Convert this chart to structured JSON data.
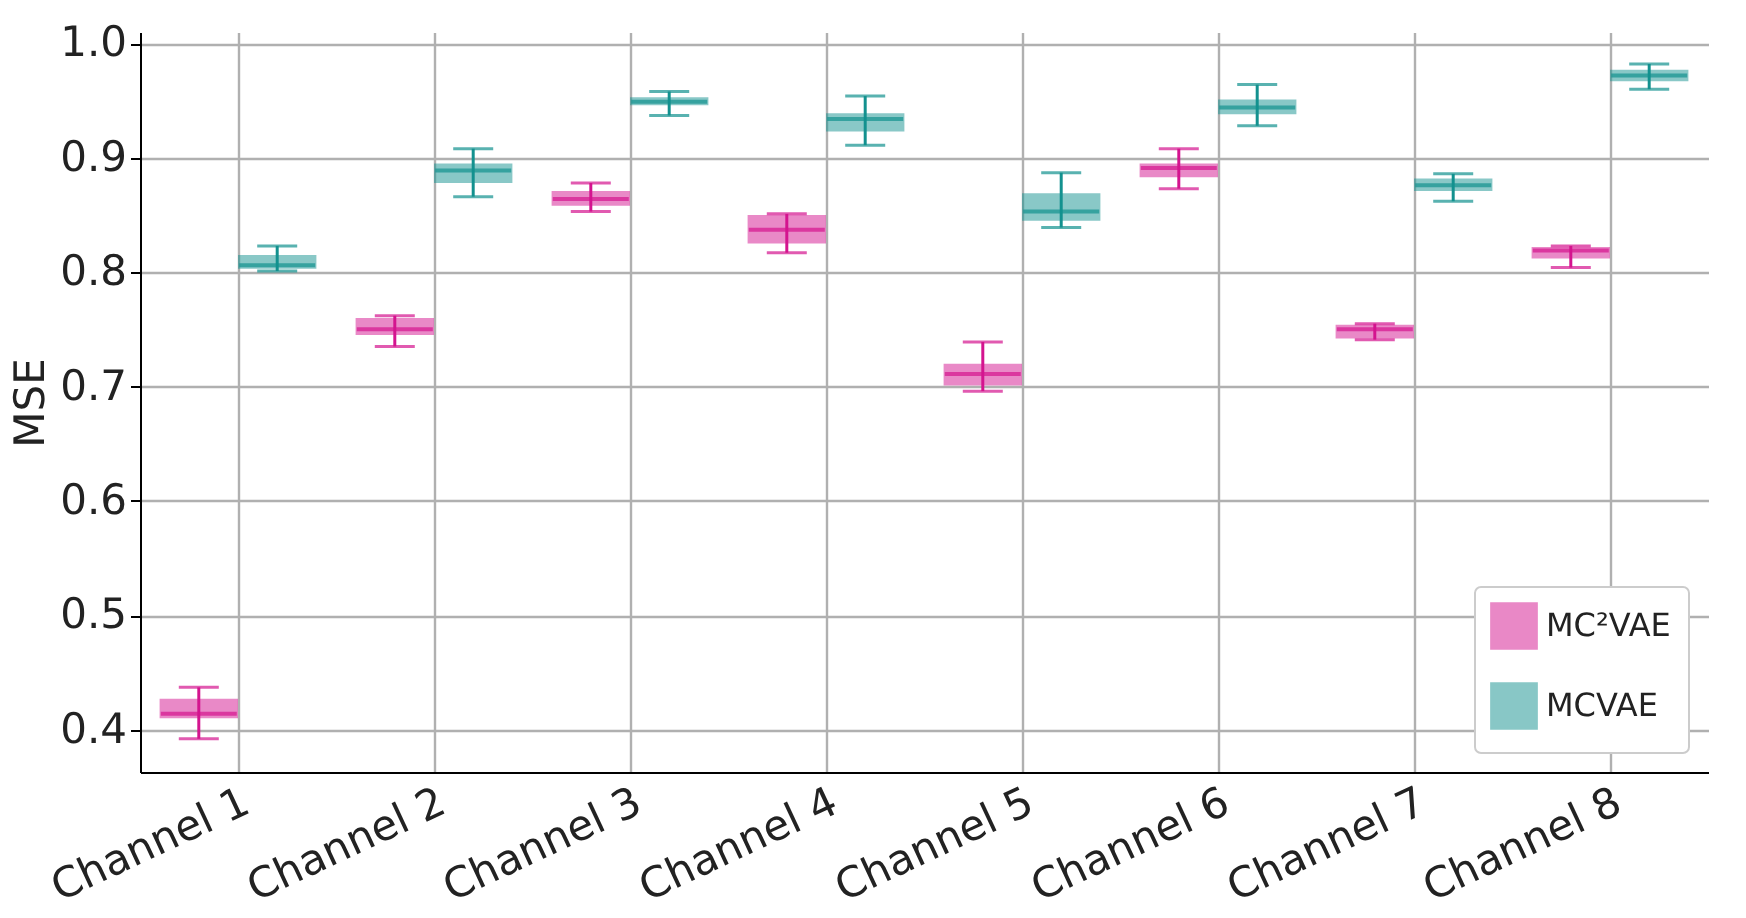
{
  "chart_data": {
    "type": "box",
    "ylabel": "MSE",
    "categories": [
      "Channel 1",
      "Channel 2",
      "Channel 3",
      "Channel 4",
      "Channel 5",
      "Channel 6",
      "Channel 7",
      "Channel 8"
    ],
    "series": [
      {
        "name": "MC²VAE",
        "color": "#d4148f",
        "boxes": [
          {
            "low": 0.392,
            "q1": 0.41,
            "median": 0.414,
            "q3": 0.427,
            "high": 0.437
          },
          {
            "low": 0.735,
            "q1": 0.745,
            "median": 0.75,
            "q3": 0.76,
            "high": 0.762
          },
          {
            "low": 0.853,
            "q1": 0.858,
            "median": 0.864,
            "q3": 0.871,
            "high": 0.878
          },
          {
            "low": 0.817,
            "q1": 0.825,
            "median": 0.837,
            "q3": 0.85,
            "high": 0.851
          },
          {
            "low": 0.696,
            "q1": 0.701,
            "median": 0.711,
            "q3": 0.72,
            "high": 0.739
          },
          {
            "low": 0.873,
            "q1": 0.883,
            "median": 0.891,
            "q3": 0.895,
            "high": 0.908
          },
          {
            "low": 0.741,
            "q1": 0.742,
            "median": 0.75,
            "q3": 0.754,
            "high": 0.755
          },
          {
            "low": 0.804,
            "q1": 0.812,
            "median": 0.819,
            "q3": 0.822,
            "high": 0.823
          }
        ]
      },
      {
        "name": "MCVAE",
        "color": "#13918f",
        "boxes": [
          {
            "low": 0.801,
            "q1": 0.803,
            "median": 0.806,
            "q3": 0.815,
            "high": 0.823
          },
          {
            "low": 0.866,
            "q1": 0.878,
            "median": 0.889,
            "q3": 0.895,
            "high": 0.908
          },
          {
            "low": 0.937,
            "q1": 0.946,
            "median": 0.949,
            "q3": 0.953,
            "high": 0.958
          },
          {
            "low": 0.911,
            "q1": 0.923,
            "median": 0.934,
            "q3": 0.939,
            "high": 0.954
          },
          {
            "low": 0.839,
            "q1": 0.845,
            "median": 0.853,
            "q3": 0.869,
            "high": 0.887
          },
          {
            "low": 0.928,
            "q1": 0.938,
            "median": 0.944,
            "q3": 0.951,
            "high": 0.964
          },
          {
            "low": 0.862,
            "q1": 0.871,
            "median": 0.876,
            "q3": 0.882,
            "high": 0.886
          },
          {
            "low": 0.96,
            "q1": 0.967,
            "median": 0.972,
            "q3": 0.977,
            "high": 0.982
          }
        ]
      }
    ],
    "ylim": [
      0.363,
      1.01
    ],
    "yticks": [
      0.4,
      0.5,
      0.6,
      0.7,
      0.8,
      0.9,
      {
        "value": 1,
        "label": "1.0"
      }
    ],
    "grid": true,
    "legend": "bottom right"
  }
}
